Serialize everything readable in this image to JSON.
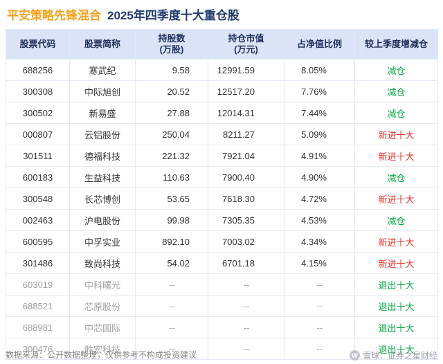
{
  "title": {
    "fund_name": "平安策略先锋混合",
    "subtitle": "2025年四季度十大重仓股"
  },
  "table": {
    "headers": {
      "code": "股票代码",
      "name": "股票简称",
      "shares_line1": "持股数",
      "shares_line2": "(万股)",
      "value_line1": "持仓市值",
      "value_line2": "(万元)",
      "ratio": "占净值比例",
      "change": "较上季度增减仓"
    },
    "rows": [
      {
        "code": "688256",
        "name": "寒武纪",
        "shares": "9.58",
        "value": "12991.59",
        "ratio": "8.05%",
        "change": "减仓",
        "change_type": "green",
        "muted": false
      },
      {
        "code": "300308",
        "name": "中际旭创",
        "shares": "20.52",
        "value": "12517.20",
        "ratio": "7.76%",
        "change": "减仓",
        "change_type": "green",
        "muted": false
      },
      {
        "code": "300502",
        "name": "新易盛",
        "shares": "27.88",
        "value": "12014.31",
        "ratio": "7.44%",
        "change": "减仓",
        "change_type": "green",
        "muted": false
      },
      {
        "code": "000807",
        "name": "云铝股份",
        "shares": "250.04",
        "value": "8211.27",
        "ratio": "5.09%",
        "change": "新进十大",
        "change_type": "red",
        "muted": false
      },
      {
        "code": "301511",
        "name": "德福科技",
        "shares": "221.32",
        "value": "7921.04",
        "ratio": "4.91%",
        "change": "新进十大",
        "change_type": "red",
        "muted": false
      },
      {
        "code": "600183",
        "name": "生益科技",
        "shares": "110.63",
        "value": "7900.40",
        "ratio": "4.90%",
        "change": "减仓",
        "change_type": "green",
        "muted": false
      },
      {
        "code": "300548",
        "name": "长芯博创",
        "shares": "53.65",
        "value": "7618.30",
        "ratio": "4.72%",
        "change": "新进十大",
        "change_type": "red",
        "muted": false
      },
      {
        "code": "002463",
        "name": "沪电股份",
        "shares": "99.98",
        "value": "7305.35",
        "ratio": "4.53%",
        "change": "减仓",
        "change_type": "green",
        "muted": false
      },
      {
        "code": "600595",
        "name": "中孚实业",
        "shares": "892.10",
        "value": "7003.02",
        "ratio": "4.34%",
        "change": "新进十大",
        "change_type": "red",
        "muted": false
      },
      {
        "code": "301486",
        "name": "致尚科技",
        "shares": "54.02",
        "value": "6701.18",
        "ratio": "4.15%",
        "change": "新进十大",
        "change_type": "red",
        "muted": false
      },
      {
        "code": "603019",
        "name": "中科曙光",
        "shares": "--",
        "value": "--",
        "ratio": "--",
        "change": "退出十大",
        "change_type": "green",
        "muted": true
      },
      {
        "code": "688521",
        "name": "芯原股份",
        "shares": "--",
        "value": "--",
        "ratio": "--",
        "change": "退出十大",
        "change_type": "green",
        "muted": true
      },
      {
        "code": "688981",
        "name": "中芯国际",
        "shares": "--",
        "value": "--",
        "ratio": "--",
        "change": "退出十大",
        "change_type": "green",
        "muted": true
      },
      {
        "code": "300476",
        "name": "胜宏科技",
        "shares": "--",
        "value": "--",
        "ratio": "--",
        "change": "退出十大",
        "change_type": "green",
        "muted": true
      }
    ]
  },
  "footer": {
    "source": "数据来源：公开数据整理，仅供参考不构成投资建议"
  },
  "brand": {
    "logo_text": "雪球：证券之星财经",
    "logo_glyph": "W"
  },
  "watermark": {
    "text": "证券之星",
    "circle_glyph": "星"
  },
  "colors": {
    "title_orange": "#f5a31a",
    "title_navy": "#1f3b6e",
    "header_bg": "#dbe3f6",
    "header_text": "#20305c",
    "border": "#e4e9f4",
    "body_text": "#333333",
    "green": "#00a842",
    "red": "#e8302a",
    "muted_bg": "#f4f5f8",
    "muted_text": "#a2a2a2"
  },
  "chart_data": {
    "type": "table",
    "title": "平安策略先锋混合 2025年四季度十大重仓股",
    "columns": [
      "股票代码",
      "股票简称",
      "持股数(万股)",
      "持仓市值(万元)",
      "占净值比例",
      "较上季度增减仓"
    ],
    "rows": [
      [
        "688256",
        "寒武纪",
        9.58,
        12991.59,
        "8.05%",
        "减仓"
      ],
      [
        "300308",
        "中际旭创",
        20.52,
        12517.2,
        "7.76%",
        "减仓"
      ],
      [
        "300502",
        "新易盛",
        27.88,
        12014.31,
        "7.44%",
        "减仓"
      ],
      [
        "000807",
        "云铝股份",
        250.04,
        8211.27,
        "5.09%",
        "新进十大"
      ],
      [
        "301511",
        "德福科技",
        221.32,
        7921.04,
        "4.91%",
        "新进十大"
      ],
      [
        "600183",
        "生益科技",
        110.63,
        7900.4,
        "4.90%",
        "减仓"
      ],
      [
        "300548",
        "长芯博创",
        53.65,
        7618.3,
        "4.72%",
        "新进十大"
      ],
      [
        "002463",
        "沪电股份",
        99.98,
        7305.35,
        "4.53%",
        "减仓"
      ],
      [
        "600595",
        "中孚实业",
        892.1,
        7003.02,
        "4.34%",
        "新进十大"
      ],
      [
        "301486",
        "致尚科技",
        54.02,
        6701.18,
        "4.15%",
        "新进十大"
      ],
      [
        "603019",
        "中科曙光",
        null,
        null,
        null,
        "退出十大"
      ],
      [
        "688521",
        "芯原股份",
        null,
        null,
        null,
        "退出十大"
      ],
      [
        "688981",
        "中芯国际",
        null,
        null,
        null,
        "退出十大"
      ],
      [
        "300476",
        "胜宏科技",
        null,
        null,
        null,
        "退出十大"
      ]
    ],
    "legend_note": "减仓/退出十大 shown green, 新进十大 shown red"
  }
}
